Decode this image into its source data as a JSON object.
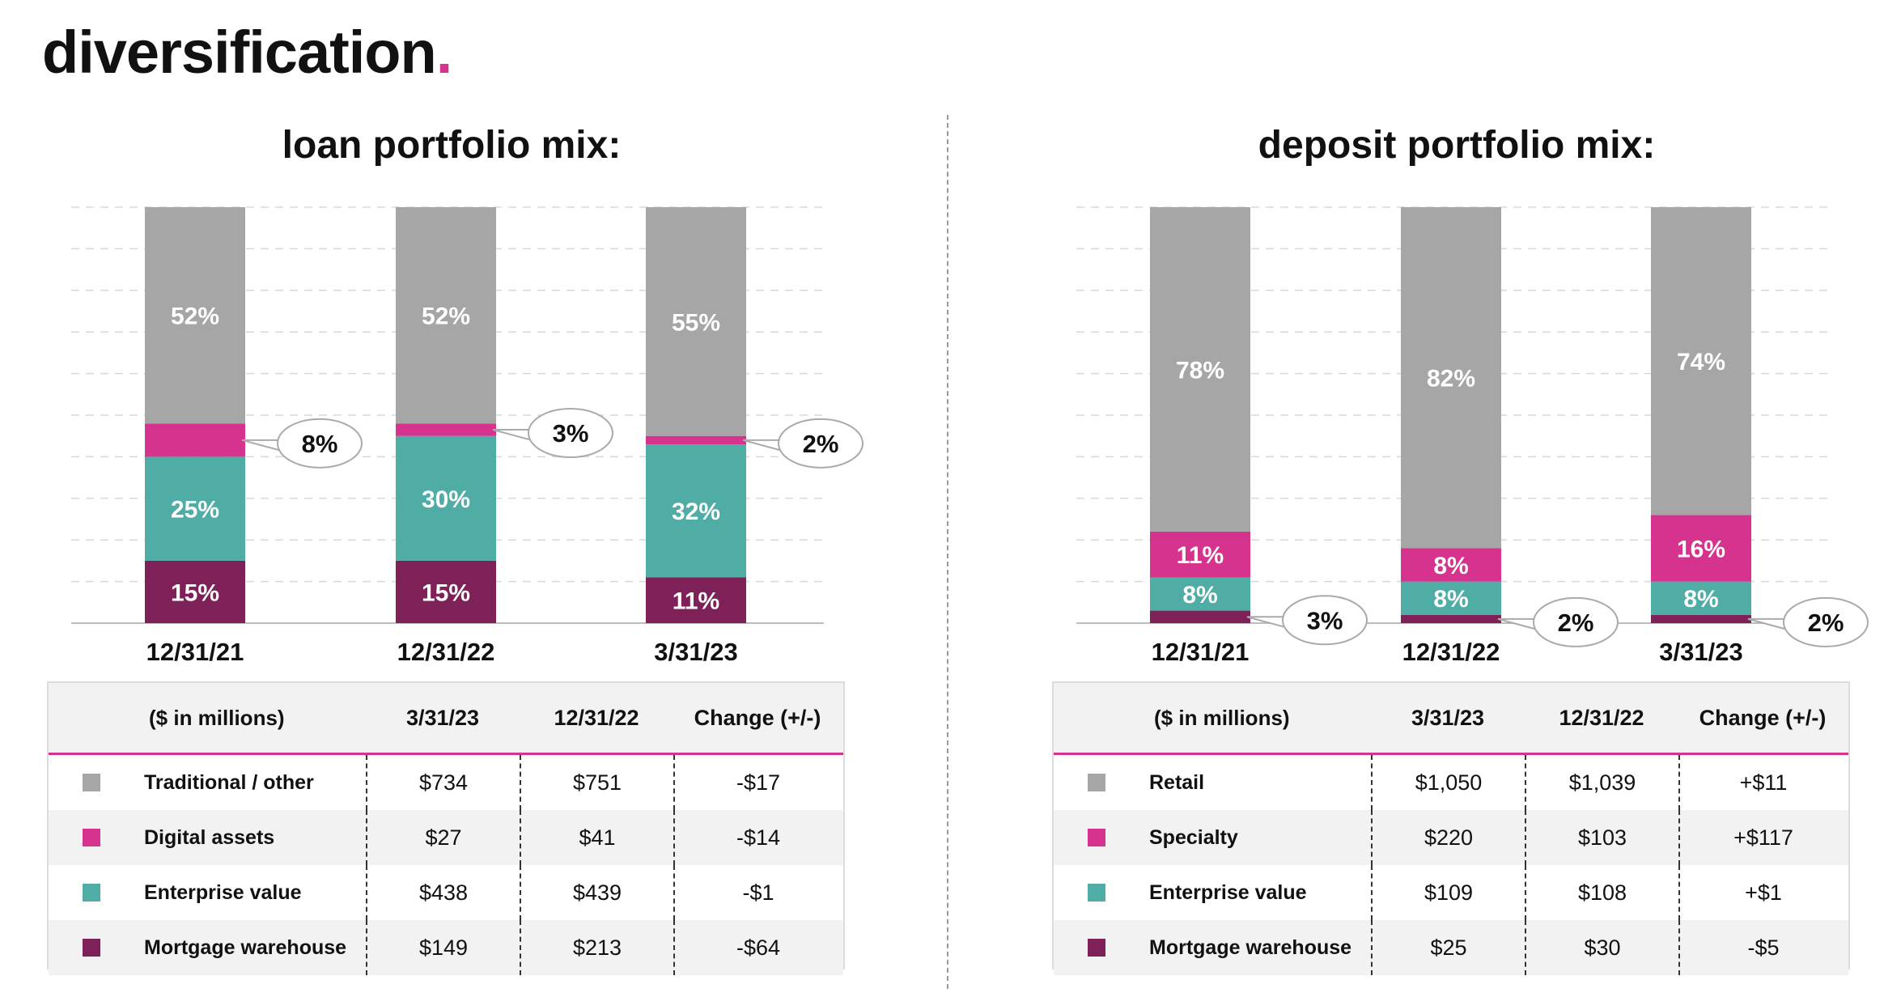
{
  "page": {
    "title": "diversification",
    "title_dot": "."
  },
  "colors": {
    "Traditional / other": "#a6a6a6",
    "Digital assets": "#d6338e",
    "Enterprise value": "#4fada6",
    "Mortgage warehouse": "#7e2159",
    "Retail": "#a6a6a6",
    "Specialty": "#d6338e"
  },
  "loan": {
    "title": "loan portfolio mix:",
    "table": {
      "headers": [
        "($ in millions)",
        "3/31/23",
        "12/31/22",
        "Change (+/-)"
      ],
      "rows": [
        {
          "label": "Traditional / other",
          "color": "#a6a6a6",
          "values": [
            "$734",
            "$751",
            "-$17"
          ]
        },
        {
          "label": "Digital assets",
          "color": "#d6338e",
          "values": [
            "$27",
            "$41",
            "-$14"
          ]
        },
        {
          "label": "Enterprise value",
          "color": "#4fada6",
          "values": [
            "$438",
            "$439",
            "-$1"
          ]
        },
        {
          "label": "Mortgage warehouse",
          "color": "#7e2159",
          "values": [
            "$149",
            "$213",
            "-$64"
          ]
        }
      ]
    }
  },
  "deposit": {
    "title": "deposit portfolio mix:",
    "table": {
      "headers": [
        "($ in millions)",
        "3/31/23",
        "12/31/22",
        "Change (+/-)"
      ],
      "rows": [
        {
          "label": "Retail",
          "color": "#a6a6a6",
          "values": [
            "$1,050",
            "$1,039",
            "+$11"
          ]
        },
        {
          "label": "Specialty",
          "color": "#d6338e",
          "values": [
            "$220",
            "$103",
            "+$117"
          ]
        },
        {
          "label": "Enterprise value",
          "color": "#4fada6",
          "values": [
            "$109",
            "$108",
            "+$1"
          ]
        },
        {
          "label": "Mortgage warehouse",
          "color": "#7e2159",
          "values": [
            "$25",
            "$30",
            "-$5"
          ]
        }
      ]
    }
  },
  "chart_data": [
    {
      "type": "bar",
      "stacked": true,
      "title": "loan portfolio mix:",
      "categories": [
        "12/31/21",
        "12/31/22",
        "3/31/23"
      ],
      "grid": true,
      "series": [
        {
          "name": "Mortgage warehouse",
          "color": "#7e2159",
          "values": [
            15,
            15,
            11
          ],
          "labels": [
            "15%",
            "15%",
            "11%"
          ],
          "callout": false
        },
        {
          "name": "Enterprise value",
          "color": "#4fada6",
          "values": [
            25,
            30,
            32
          ],
          "labels": [
            "25%",
            "30%",
            "32%"
          ],
          "callout": false
        },
        {
          "name": "Digital assets",
          "color": "#d6338e",
          "values": [
            8,
            3,
            2
          ],
          "labels": [
            "8%",
            "3%",
            "2%"
          ],
          "callout": true
        },
        {
          "name": "Traditional / other",
          "color": "#a6a6a6",
          "values": [
            52,
            52,
            55
          ],
          "labels": [
            "52%",
            "52%",
            "55%"
          ],
          "callout": false
        }
      ]
    },
    {
      "type": "bar",
      "stacked": true,
      "title": "deposit portfolio mix:",
      "categories": [
        "12/31/21",
        "12/31/22",
        "3/31/23"
      ],
      "grid": true,
      "series": [
        {
          "name": "Mortgage warehouse",
          "color": "#7e2159",
          "values": [
            3,
            2,
            2
          ],
          "labels": [
            "3%",
            "2%",
            "2%"
          ],
          "callout": true
        },
        {
          "name": "Enterprise value",
          "color": "#4fada6",
          "values": [
            8,
            8,
            8
          ],
          "labels": [
            "8%",
            "8%",
            "8%"
          ],
          "callout": false
        },
        {
          "name": "Specialty",
          "color": "#d6338e",
          "values": [
            11,
            8,
            16
          ],
          "labels": [
            "11%",
            "8%",
            "16%"
          ],
          "callout": false
        },
        {
          "name": "Retail",
          "color": "#a6a6a6",
          "values": [
            78,
            82,
            74
          ],
          "labels": [
            "78%",
            "82%",
            "74%"
          ],
          "callout": false
        }
      ]
    }
  ]
}
